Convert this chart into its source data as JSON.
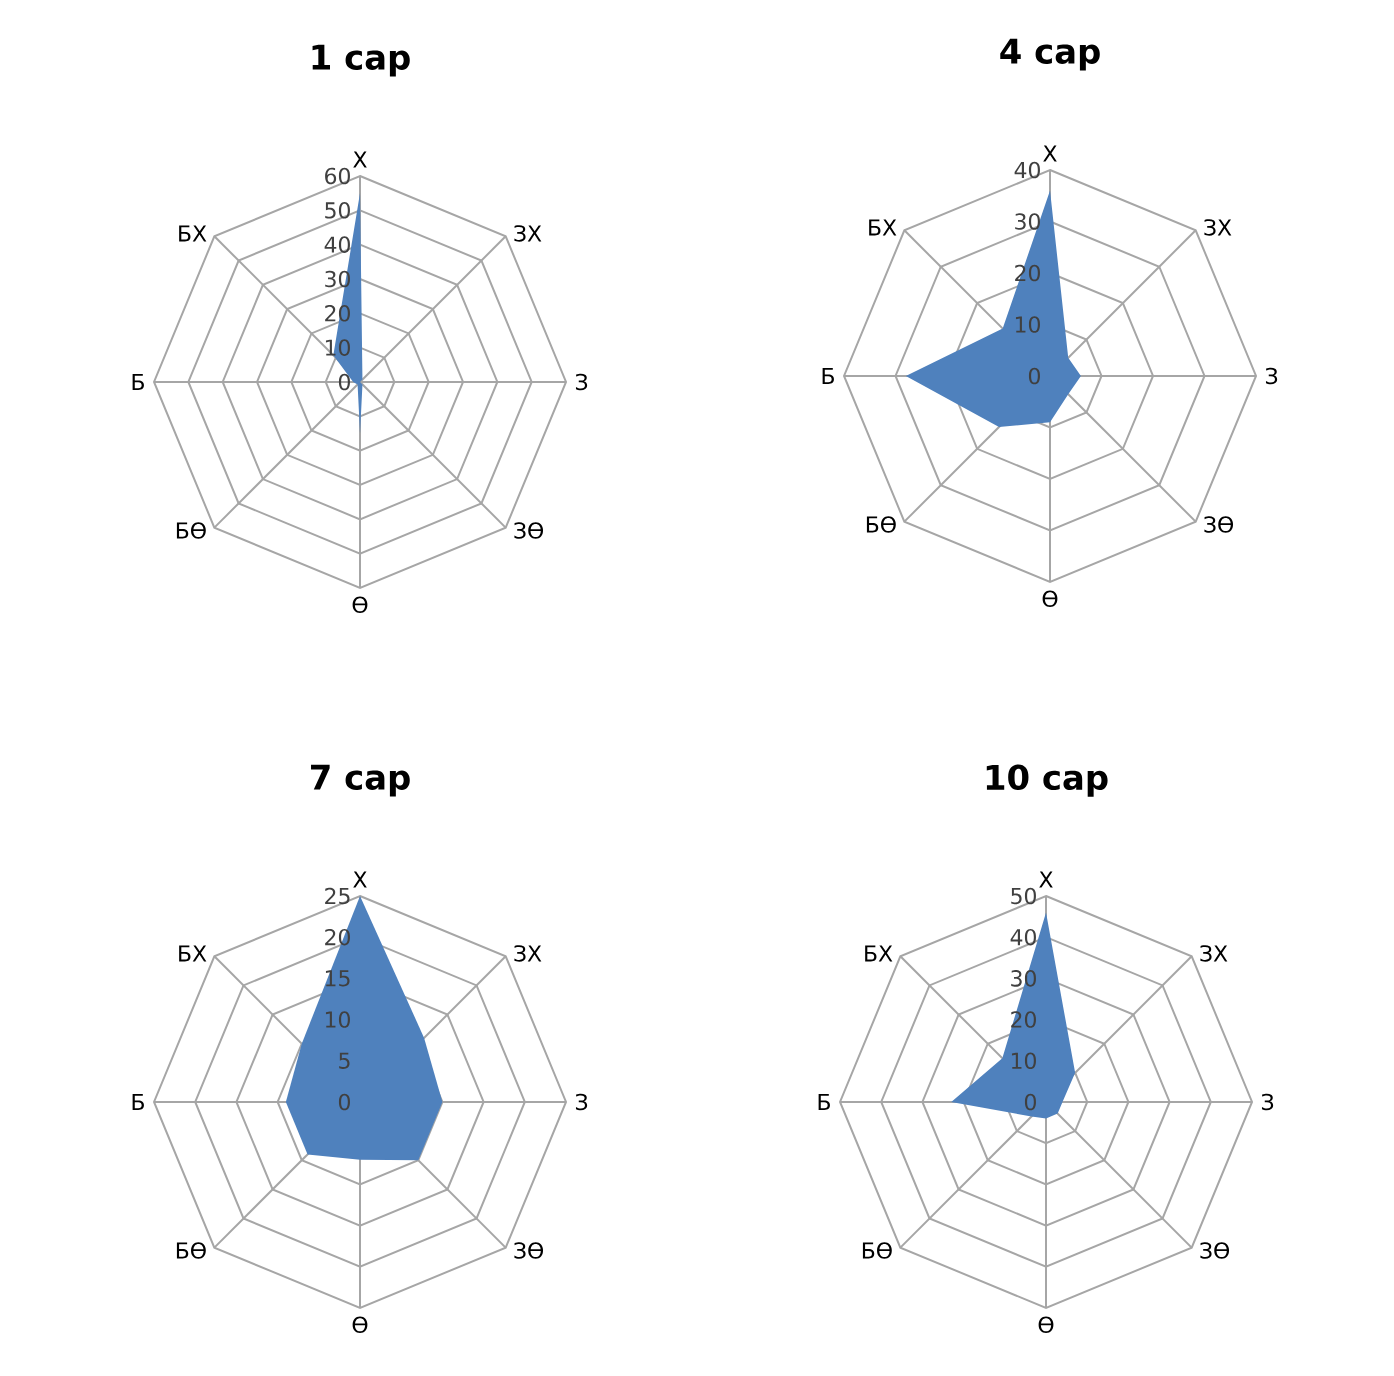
{
  "chart_data": [
    {
      "type": "radar",
      "title": "1 сар",
      "categories": [
        "Х",
        "ЗХ",
        "З",
        "ЗӨ",
        "Ө",
        "БӨ",
        "Б",
        "БХ"
      ],
      "ylim": [
        0,
        60
      ],
      "yticks": [
        0,
        10,
        20,
        30,
        40,
        50,
        60
      ],
      "grid": true,
      "series": [
        {
          "color": "#4f81bd",
          "values": [
            55,
            1,
            0,
            1,
            15,
            1,
            2,
            11
          ]
        }
      ]
    },
    {
      "type": "radar",
      "title": "4 сар",
      "categories": [
        "Х",
        "ЗХ",
        "З",
        "ЗӨ",
        "Ө",
        "БӨ",
        "Б",
        "БХ"
      ],
      "ylim": [
        0,
        40
      ],
      "yticks": [
        0,
        10,
        20,
        30,
        40
      ],
      "grid": true,
      "series": [
        {
          "color": "#4f81bd",
          "values": [
            36,
            5,
            6,
            5,
            9,
            14,
            28,
            13
          ]
        }
      ]
    },
    {
      "type": "radar",
      "title": "7 сар",
      "categories": [
        "Х",
        "ЗХ",
        "З",
        "ЗӨ",
        "Ө",
        "БӨ",
        "Б",
        "БХ"
      ],
      "ylim": [
        0,
        25
      ],
      "yticks": [
        0,
        5,
        10,
        15,
        20,
        25
      ],
      "grid": true,
      "series": [
        {
          "color": "#4f81bd",
          "values": [
            25,
            11,
            10,
            10,
            7,
            9,
            9,
            10
          ]
        }
      ]
    },
    {
      "type": "radar",
      "title": "10 сар",
      "categories": [
        "Х",
        "ЗХ",
        "З",
        "ЗӨ",
        "Ө",
        "БӨ",
        "Б",
        "БХ"
      ],
      "ylim": [
        0,
        50
      ],
      "yticks": [
        0,
        10,
        20,
        30,
        40,
        50
      ],
      "grid": true,
      "series": [
        {
          "color": "#4f81bd",
          "values": [
            46,
            10,
            4,
            4,
            4,
            5,
            23,
            15
          ]
        }
      ]
    }
  ]
}
